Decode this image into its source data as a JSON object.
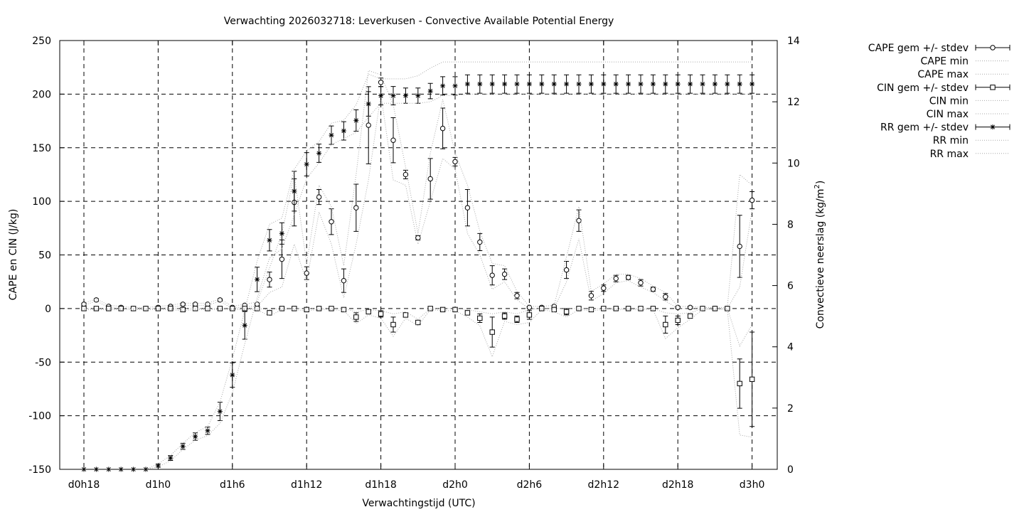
{
  "chart_data": {
    "type": "line",
    "title": "Verwachting 2026032718: Leverkusen - Convective Available Potential Energy",
    "xlabel": "Verwachtingstijd (UTC)",
    "ylabel_left": "CAPE en CIN (J/kg)",
    "ylabel_right_prefix": "Convectieve neerslag (kg/m",
    "ylabel_right_sup": "2",
    "ylabel_right_suffix": ")",
    "y_left_range": [
      -150,
      250
    ],
    "y_right_range": [
      0,
      14
    ],
    "x_range_hours": [
      18,
      84
    ],
    "grid": true,
    "legend_position": "outside-right",
    "x_ticks": [
      {
        "hour": 18,
        "label": "d0h18"
      },
      {
        "hour": 24,
        "label": "d1h0"
      },
      {
        "hour": 30,
        "label": "d1h6"
      },
      {
        "hour": 36,
        "label": "d1h12"
      },
      {
        "hour": 42,
        "label": "d1h18"
      },
      {
        "hour": 48,
        "label": "d2h0"
      },
      {
        "hour": 54,
        "label": "d2h6"
      },
      {
        "hour": 60,
        "label": "d2h12"
      },
      {
        "hour": 66,
        "label": "d2h18"
      },
      {
        "hour": 72,
        "label": "d3h0"
      }
    ],
    "y_left_ticks": [
      -150,
      -100,
      -50,
      0,
      50,
      100,
      150,
      200,
      250
    ],
    "y_right_ticks": [
      0,
      2,
      4,
      6,
      8,
      10,
      12,
      14
    ],
    "x_hours": [
      18,
      19,
      20,
      21,
      22,
      23,
      24,
      25,
      26,
      27,
      28,
      29,
      30,
      31,
      32,
      33,
      34,
      35,
      36,
      37,
      38,
      39,
      40,
      41,
      42,
      43,
      44,
      45,
      46,
      47,
      48,
      49,
      50,
      51,
      52,
      53,
      54,
      55,
      56,
      57,
      58,
      59,
      60,
      61,
      62,
      63,
      64,
      65,
      66,
      67,
      68,
      69,
      70,
      71,
      72
    ],
    "legend": [
      "CAPE gem +/- stdev",
      "CAPE min",
      "CAPE max",
      "CIN gem +/- stdev",
      "CIN min",
      "CIN max",
      "RR gem +/- stdev",
      "RR min",
      "RR max"
    ],
    "series": [
      {
        "name": "CAPE gem +/- stdev",
        "axis": "left",
        "marker": "circle",
        "values": [
          4,
          8,
          2,
          1,
          0,
          0,
          1,
          2,
          4,
          4,
          4,
          8,
          1,
          3,
          4,
          27,
          46,
          99,
          33,
          104,
          81,
          26,
          94,
          171,
          211,
          157,
          125,
          66,
          121,
          168,
          137,
          94,
          62,
          31,
          32,
          12,
          1,
          1,
          2,
          36,
          82,
          12,
          19,
          28,
          29,
          24,
          18,
          11,
          1,
          1,
          0,
          0,
          0,
          58,
          101
        ],
        "stdev": [
          1,
          1,
          1,
          1,
          1,
          1,
          1,
          1,
          1,
          1,
          1,
          1,
          1,
          1,
          1,
          7,
          18,
          22,
          6,
          7,
          12,
          11,
          22,
          36,
          4,
          21,
          4,
          2,
          19,
          19,
          4,
          17,
          8,
          9,
          5,
          3,
          1,
          1,
          1,
          8,
          10,
          4,
          3,
          3,
          2,
          3,
          2,
          3,
          1,
          1,
          1,
          1,
          1,
          29,
          8
        ]
      },
      {
        "name": "CAPE min",
        "axis": "left",
        "values": [
          3,
          7,
          1,
          0,
          0,
          0,
          0,
          1,
          3,
          3,
          3,
          7,
          0,
          2,
          2,
          15,
          20,
          60,
          25,
          90,
          60,
          10,
          60,
          120,
          200,
          120,
          115,
          60,
          100,
          140,
          130,
          70,
          50,
          18,
          25,
          8,
          0,
          0,
          0,
          25,
          65,
          7,
          14,
          24,
          26,
          20,
          15,
          7,
          0,
          0,
          0,
          0,
          0,
          20,
          92
        ]
      },
      {
        "name": "CAPE max",
        "axis": "left",
        "values": [
          5,
          9,
          3,
          2,
          1,
          1,
          2,
          3,
          5,
          5,
          5,
          9,
          2,
          4,
          6,
          38,
          70,
          125,
          42,
          115,
          95,
          40,
          125,
          222,
          218,
          190,
          132,
          70,
          145,
          195,
          145,
          115,
          72,
          42,
          40,
          16,
          2,
          2,
          3,
          48,
          95,
          16,
          23,
          32,
          32,
          28,
          21,
          15,
          2,
          2,
          1,
          1,
          1,
          125,
          115
        ]
      },
      {
        "name": "CIN gem +/- stdev",
        "axis": "left",
        "marker": "square",
        "values": [
          0,
          0,
          0,
          0,
          0,
          0,
          0,
          0,
          -1,
          0,
          0,
          0,
          0,
          0,
          0,
          -4,
          0,
          0,
          -1,
          0,
          0,
          -1,
          -8,
          -3,
          -5,
          -15,
          -6,
          -13,
          0,
          -1,
          -1,
          -4,
          -9,
          -22,
          -7,
          -10,
          -6,
          0,
          -1,
          -3,
          0,
          -1,
          0,
          0,
          0,
          0,
          0,
          -15,
          -11,
          -7,
          0,
          0,
          0,
          -70,
          -66
        ],
        "stdev": [
          1,
          1,
          1,
          1,
          1,
          1,
          1,
          1,
          1,
          1,
          1,
          1,
          1,
          1,
          1,
          2,
          1,
          1,
          1,
          1,
          1,
          1,
          4,
          2,
          3,
          7,
          2,
          2,
          1,
          1,
          1,
          2,
          4,
          14,
          3,
          3,
          4,
          1,
          2,
          3,
          1,
          1,
          1,
          1,
          1,
          1,
          1,
          8,
          4,
          2,
          1,
          1,
          1,
          23,
          44
        ]
      },
      {
        "name": "CIN min",
        "axis": "left",
        "values": [
          -1,
          -1,
          -1,
          -1,
          -1,
          -1,
          -1,
          -1,
          -2,
          -1,
          -1,
          -1,
          -1,
          -1,
          -1,
          -7,
          -1,
          -1,
          -2,
          -1,
          -1,
          -2,
          -14,
          -6,
          -9,
          -26,
          -9,
          -16,
          -1,
          -2,
          -2,
          -8,
          -16,
          -45,
          -12,
          -15,
          -13,
          -1,
          -3,
          -8,
          -1,
          -2,
          -1,
          -1,
          -1,
          -1,
          -1,
          -28,
          -18,
          -10,
          -1,
          -1,
          -1,
          -118,
          -120
        ]
      },
      {
        "name": "CIN max",
        "axis": "left",
        "values": [
          0,
          0,
          0,
          0,
          0,
          0,
          0,
          0,
          0,
          0,
          0,
          0,
          0,
          0,
          0,
          -1,
          0,
          0,
          0,
          0,
          0,
          0,
          -3,
          -1,
          -2,
          -5,
          -3,
          -10,
          0,
          0,
          0,
          -1,
          -3,
          -5,
          -3,
          -5,
          -1,
          0,
          0,
          0,
          0,
          0,
          0,
          0,
          0,
          0,
          0,
          -4,
          -5,
          -4,
          0,
          0,
          0,
          -35,
          -15
        ]
      },
      {
        "name": "RR gem +/- stdev",
        "axis": "right",
        "marker": "star",
        "values": [
          0,
          0,
          0,
          0,
          0,
          0,
          0.12,
          0.37,
          0.75,
          1.07,
          1.26,
          1.89,
          3.08,
          4.7,
          6.2,
          7.48,
          7.7,
          9.08,
          9.96,
          10.32,
          10.91,
          11.05,
          11.39,
          11.93,
          12.2,
          12.2,
          12.2,
          12.2,
          12.35,
          12.52,
          12.52,
          12.58,
          12.58,
          12.58,
          12.58,
          12.58,
          12.58,
          12.58,
          12.58,
          12.58,
          12.58,
          12.58,
          12.58,
          12.58,
          12.58,
          12.58,
          12.58,
          12.58,
          12.58,
          12.58,
          12.58,
          12.58,
          12.58,
          12.58,
          12.58
        ],
        "stdev": [
          0,
          0,
          0,
          0,
          0,
          0,
          0.05,
          0.08,
          0.1,
          0.12,
          0.12,
          0.3,
          0.4,
          0.45,
          0.4,
          0.35,
          0.35,
          0.65,
          0.38,
          0.3,
          0.3,
          0.3,
          0.35,
          0.4,
          0.3,
          0.3,
          0.25,
          0.25,
          0.25,
          0.3,
          0.3,
          0.3,
          0.3,
          0.3,
          0.3,
          0.3,
          0.3,
          0.3,
          0.3,
          0.3,
          0.3,
          0.3,
          0.3,
          0.3,
          0.3,
          0.3,
          0.3,
          0.3,
          0.3,
          0.3,
          0.3,
          0.3,
          0.3,
          0.3,
          0.3
        ]
      },
      {
        "name": "RR min",
        "axis": "right",
        "values": [
          0,
          0,
          0,
          0,
          0,
          0,
          0.08,
          0.28,
          0.65,
          0.95,
          1.1,
          1.5,
          2.5,
          4.1,
          5.6,
          6.9,
          7.2,
          8.3,
          9.5,
          10.0,
          10.6,
          10.8,
          11.0,
          11.5,
          11.95,
          11.95,
          11.95,
          11.95,
          12.0,
          12.2,
          12.2,
          12.25,
          12.25,
          12.25,
          12.25,
          12.25,
          12.25,
          12.25,
          12.25,
          12.25,
          12.25,
          12.25,
          12.25,
          12.25,
          12.25,
          12.25,
          12.25,
          12.25,
          12.25,
          12.25,
          12.25,
          12.25,
          12.25,
          12.25,
          12.25
        ]
      },
      {
        "name": "RR max",
        "axis": "right",
        "values": [
          0,
          0,
          0,
          0,
          0,
          0,
          0.18,
          0.45,
          0.85,
          1.2,
          1.4,
          2.2,
          3.6,
          5.2,
          6.8,
          8.0,
          8.2,
          9.8,
          10.4,
          10.7,
          11.3,
          11.4,
          11.9,
          12.9,
          12.75,
          12.75,
          12.75,
          12.85,
          13.1,
          13.3,
          13.3,
          13.3,
          13.3,
          13.3,
          13.3,
          13.3,
          13.3,
          13.3,
          13.3,
          13.3,
          13.3,
          13.3,
          13.3,
          13.3,
          13.3,
          13.3,
          13.3,
          13.3,
          13.3,
          13.3,
          13.3,
          13.3,
          13.3,
          13.3,
          13.3
        ]
      }
    ]
  }
}
